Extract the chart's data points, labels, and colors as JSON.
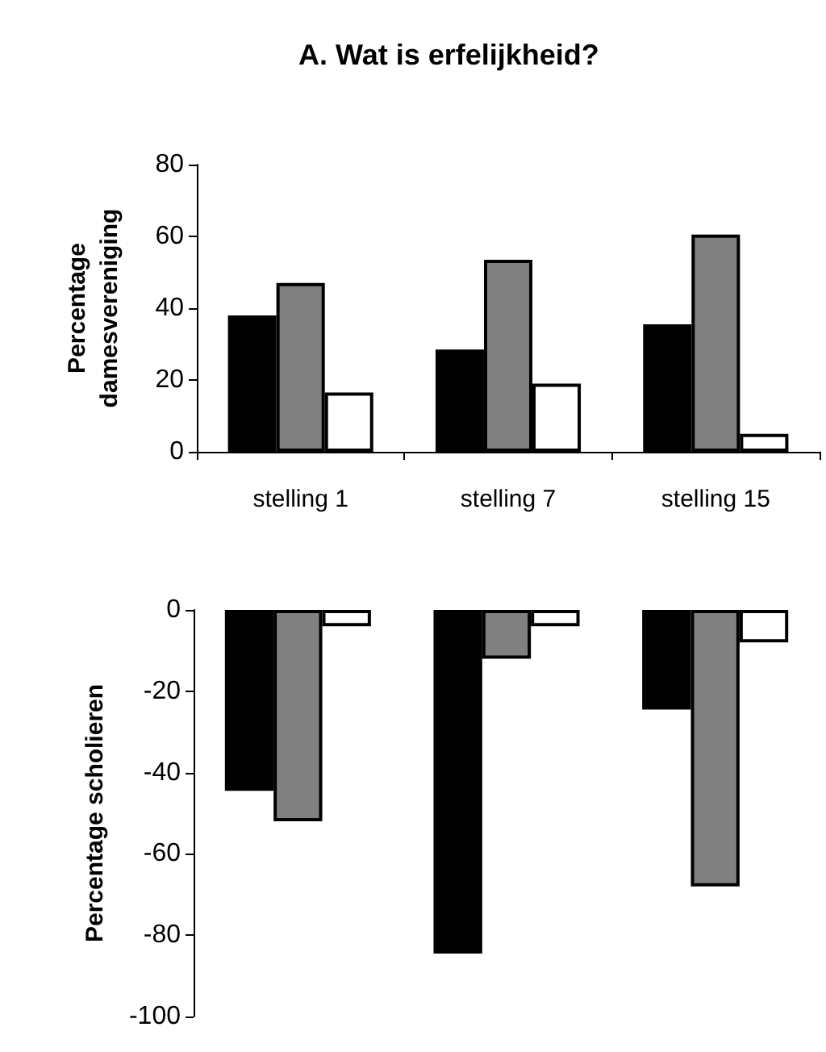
{
  "chart_data": [
    {
      "type": "bar",
      "title": "A. Wat is erfelijkheid?",
      "ylabel": "Percentage\ndamesvereniging",
      "categories": [
        "stelling 1",
        "stelling 7",
        "stelling 15"
      ],
      "series": [
        {
          "color": "#000000",
          "values": [
            38,
            28.5,
            35.5
          ]
        },
        {
          "color": "#808080",
          "values": [
            47,
            53.5,
            60.5
          ]
        },
        {
          "color": "#ffffff",
          "values": [
            16.5,
            19,
            5
          ]
        }
      ],
      "ylim": [
        0,
        80
      ],
      "yticks": [
        0,
        20,
        40,
        60,
        80
      ],
      "grid": false
    },
    {
      "type": "bar",
      "ylabel": "Percentage scholieren",
      "categories": [
        null,
        null,
        null
      ],
      "series": [
        {
          "color": "#000000",
          "values": [
            -44.5,
            -84.5,
            -24.5
          ]
        },
        {
          "color": "#808080",
          "values": [
            -52,
            -12,
            -68
          ]
        },
        {
          "color": "#ffffff",
          "values": [
            -4,
            -4,
            -8
          ]
        }
      ],
      "ylim": [
        -100,
        0
      ],
      "yticks": [
        -100,
        -80,
        -60,
        -40,
        -20,
        0
      ],
      "grid": false
    }
  ]
}
